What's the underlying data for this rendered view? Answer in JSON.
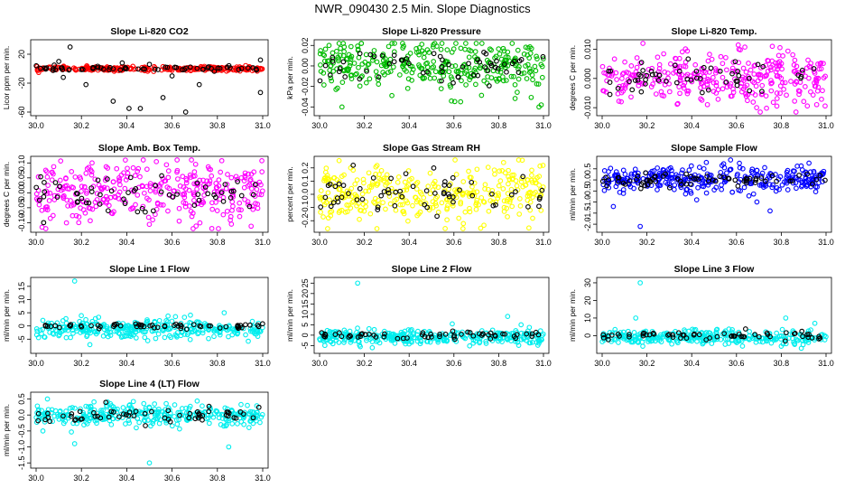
{
  "page_title": "NWR_090430  2.5 Min. Slope Diagnostics",
  "chart_data": [
    {
      "type": "scatter",
      "title": "Slope Li-820 CO2",
      "xlabel": "",
      "ylabel": "Licor ppm per min.",
      "xlim": [
        30.0,
        31.0
      ],
      "ylim": [
        -60,
        35
      ],
      "x_ticks": [
        "30.0",
        "30.2",
        "30.4",
        "30.6",
        "30.8",
        "31.0"
      ],
      "y_ticks": [
        -60,
        -20,
        20
      ],
      "series": [
        {
          "color": "#ff0000",
          "center": 0,
          "spread": 1.5,
          "count": 260,
          "values": [
            [
              30.4,
              0
            ],
            [
              30.8,
              1
            ]
          ]
        },
        {
          "color": "#000000",
          "center": 0,
          "spread": 1.5,
          "count": 60,
          "values": [
            [
              30.15,
              30
            ],
            [
              30.1,
              10
            ],
            [
              30.12,
              -12
            ],
            [
              30.22,
              -22
            ],
            [
              30.34,
              -45
            ],
            [
              30.41,
              -55
            ],
            [
              30.46,
              -55
            ],
            [
              30.56,
              -40
            ],
            [
              30.66,
              -60
            ],
            [
              30.72,
              -22
            ],
            [
              30.6,
              -10
            ],
            [
              30.99,
              12
            ],
            [
              30.99,
              -33
            ],
            [
              30.38,
              8
            ],
            [
              30.08,
              5
            ],
            [
              30.5,
              6
            ]
          ]
        }
      ]
    },
    {
      "type": "scatter",
      "title": "Slope Li-820 Pressure",
      "xlabel": "",
      "ylabel": "kPa per min.",
      "xlim": [
        30.0,
        31.0
      ],
      "ylim": [
        -0.045,
        0.022
      ],
      "x_ticks": [
        "30.0",
        "30.2",
        "30.4",
        "30.6",
        "30.8",
        "31.0"
      ],
      "y_ticks": [
        -0.04,
        -0.02,
        0.0,
        0.02
      ],
      "y_tick_labels": [
        "-0.04",
        "-0.02",
        "0.00",
        "0.02"
      ],
      "series": [
        {
          "color": "#00bb00",
          "center": 0.0,
          "spread": 0.012,
          "count": 330,
          "values": [
            [
              30.1,
              -0.04
            ],
            [
              30.63,
              -0.035
            ],
            [
              30.98,
              -0.04
            ],
            [
              30.99,
              -0.038
            ]
          ]
        },
        {
          "color": "#000000",
          "center": 0.0,
          "spread": 0.008,
          "count": 60,
          "values": []
        }
      ]
    },
    {
      "type": "scatter",
      "title": "Slope Li-820 Temp.",
      "xlabel": "",
      "ylabel": "degrees C per min.",
      "xlim": [
        30.0,
        31.0
      ],
      "ylim": [
        -0.0115,
        0.012
      ],
      "x_ticks": [
        "30.0",
        "30.2",
        "30.4",
        "30.6",
        "30.8",
        "31.0"
      ],
      "y_ticks": [
        -0.01,
        0.0,
        0.01
      ],
      "y_tick_labels": [
        "-0.010",
        "0.000",
        "0.010"
      ],
      "series": [
        {
          "color": "#ff00ff",
          "center": 0.0,
          "spread": 0.0045,
          "count": 330,
          "values": [
            [
              30.76,
              0.011
            ],
            [
              30.69,
              -0.01
            ],
            [
              30.58,
              -0.006
            ]
          ]
        },
        {
          "color": "#000000",
          "center": 0.0,
          "spread": 0.003,
          "count": 55,
          "values": []
        }
      ]
    },
    {
      "type": "scatter",
      "title": "Slope Amb. Box Temp.",
      "xlabel": "",
      "ylabel": "degrees C per min.",
      "xlim": [
        30.0,
        31.0
      ],
      "ylim": [
        -0.12,
        0.11
      ],
      "x_ticks": [
        "30.0",
        "30.2",
        "30.4",
        "30.6",
        "30.8",
        "31.0"
      ],
      "y_ticks": [
        -0.1,
        -0.05,
        0.0,
        0.05,
        0.1
      ],
      "y_tick_labels": [
        "-0.10",
        "-0.05",
        "0.00",
        "0.05",
        "0.10"
      ],
      "series": [
        {
          "color": "#ff00ff",
          "center": 0.0,
          "spread": 0.05,
          "count": 340,
          "values": []
        },
        {
          "color": "#000000",
          "center": 0.0,
          "spread": 0.03,
          "count": 60,
          "values": []
        }
      ]
    },
    {
      "type": "scatter",
      "title": "Slope Gas Stream RH",
      "xlabel": "",
      "ylabel": "percent per min.",
      "xlim": [
        30.0,
        31.0
      ],
      "ylim": [
        -0.26,
        0.26
      ],
      "x_ticks": [
        "30.0",
        "30.2",
        "30.4",
        "30.6",
        "30.8",
        "31.0"
      ],
      "y_ticks": [
        -0.2,
        -0.1,
        0.0,
        0.1,
        0.2
      ],
      "y_tick_labels": [
        "-0.2",
        "-0.1",
        "0.0",
        "0.1",
        "0.2"
      ],
      "series": [
        {
          "color": "#ffff00",
          "center": 0.0,
          "spread": 0.11,
          "count": 330,
          "values": []
        },
        {
          "color": "#000000",
          "center": 0.0,
          "spread": 0.08,
          "count": 60,
          "values": [
            [
              30.15,
              0.22
            ]
          ]
        }
      ]
    },
    {
      "type": "scatter",
      "title": "Slope Sample Flow",
      "xlabel": "",
      "ylabel": "ml/min per min.",
      "xlim": [
        30.0,
        31.0
      ],
      "ylim": [
        -2.2,
        0.9
      ],
      "x_ticks": [
        "30.0",
        "30.2",
        "30.4",
        "30.6",
        "30.8",
        "31.0"
      ],
      "y_ticks": [
        -2.0,
        -1.5,
        -1.0,
        -0.5,
        0.0,
        0.5
      ],
      "y_tick_labels": [
        "-2.0",
        "-1.5",
        "-1.0",
        "-0.5",
        "0.0",
        "0.5"
      ],
      "series": [
        {
          "color": "#0000ff",
          "center": 0.0,
          "spread": 0.3,
          "count": 330,
          "values": [
            [
              30.17,
              -2.1
            ],
            [
              30.05,
              -1.2
            ],
            [
              30.75,
              -1.4
            ]
          ]
        },
        {
          "color": "#000000",
          "center": 0.0,
          "spread": 0.15,
          "count": 70,
          "values": []
        }
      ]
    },
    {
      "type": "scatter",
      "title": "Slope Line 1 Flow",
      "xlabel": "",
      "ylabel": "ml/min per min.",
      "xlim": [
        30.0,
        31.0
      ],
      "ylim": [
        -9,
        17
      ],
      "x_ticks": [
        "30.0",
        "30.2",
        "30.4",
        "30.6",
        "30.8",
        "31.0"
      ],
      "y_ticks": [
        -5,
        0,
        5,
        10,
        15
      ],
      "series": [
        {
          "color": "#00eeee",
          "center": -1,
          "spread": 1.8,
          "count": 330,
          "values": [
            [
              30.17,
              17
            ],
            [
              30.83,
              5
            ]
          ]
        },
        {
          "color": "#000000",
          "center": 0,
          "spread": 0.4,
          "count": 60,
          "values": []
        }
      ]
    },
    {
      "type": "scatter",
      "title": "Slope Line 2 Flow",
      "xlabel": "",
      "ylabel": "ml/min per min.",
      "xlim": [
        30.0,
        31.0
      ],
      "ylim": [
        -7,
        26
      ],
      "x_ticks": [
        "30.0",
        "30.2",
        "30.4",
        "30.6",
        "30.8",
        "31.0"
      ],
      "y_ticks": [
        -5,
        0,
        5,
        10,
        15,
        20,
        25
      ],
      "series": [
        {
          "color": "#00eeee",
          "center": -1,
          "spread": 1.8,
          "count": 330,
          "values": [
            [
              30.17,
              25
            ],
            [
              30.84,
              9
            ],
            [
              30.9,
              5
            ]
          ]
        },
        {
          "color": "#000000",
          "center": 0,
          "spread": 0.8,
          "count": 60,
          "values": []
        }
      ]
    },
    {
      "type": "scatter",
      "title": "Slope Line 3 Flow",
      "xlabel": "",
      "ylabel": "ml/min per min.",
      "xlim": [
        30.0,
        31.0
      ],
      "ylim": [
        -8,
        31
      ],
      "x_ticks": [
        "30.0",
        "30.2",
        "30.4",
        "30.6",
        "30.8",
        "31.0"
      ],
      "y_ticks": [
        0,
        10,
        20,
        30
      ],
      "series": [
        {
          "color": "#00eeee",
          "center": -1,
          "spread": 2,
          "count": 330,
          "values": [
            [
              30.17,
              30
            ],
            [
              30.15,
              10
            ],
            [
              30.82,
              10
            ],
            [
              30.95,
              7
            ],
            [
              30.8,
              -6
            ],
            [
              30.86,
              -5
            ]
          ]
        },
        {
          "color": "#000000",
          "center": 0,
          "spread": 1,
          "count": 60,
          "values": []
        }
      ]
    },
    {
      "type": "scatter",
      "title": "Slope Line 4 (LT) Flow",
      "xlabel": "",
      "ylabel": "ml/min per min.",
      "xlim": [
        30.0,
        31.0
      ],
      "ylim": [
        -1.55,
        0.6
      ],
      "x_ticks": [
        "30.0",
        "30.2",
        "30.4",
        "30.6",
        "30.8",
        "31.0"
      ],
      "y_ticks": [
        -1.5,
        -1.0,
        -0.5,
        0.0,
        0.5
      ],
      "y_tick_labels": [
        "-1.5",
        "-1.0",
        "-0.5",
        "0.0",
        "0.5"
      ],
      "series": [
        {
          "color": "#00eeee",
          "center": 0.0,
          "spread": 0.17,
          "count": 330,
          "values": [
            [
              30.5,
              -1.5
            ],
            [
              30.85,
              -1.0
            ],
            [
              30.17,
              -0.9
            ],
            [
              30.05,
              0.5
            ],
            [
              30.03,
              -0.5
            ]
          ]
        },
        {
          "color": "#000000",
          "center": 0.0,
          "spread": 0.12,
          "count": 60,
          "values": []
        }
      ]
    }
  ]
}
